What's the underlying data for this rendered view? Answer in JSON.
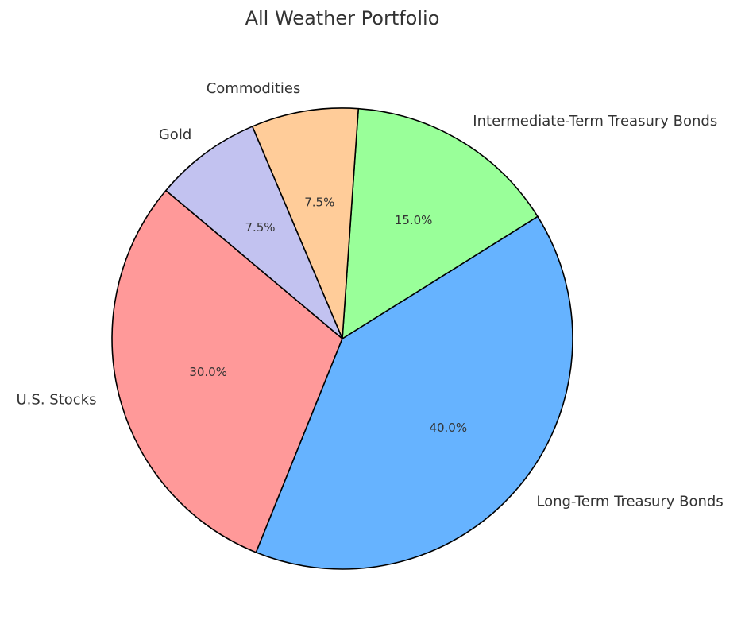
{
  "chart_data": {
    "type": "pie",
    "title": "All Weather Portfolio",
    "start_angle_deg": 140,
    "direction": "counterclockwise",
    "slices": [
      {
        "label": "U.S. Stocks",
        "value": 30.0,
        "pct_label": "30.0%",
        "color": "#ff9999"
      },
      {
        "label": "Long-Term Treasury Bonds",
        "value": 40.0,
        "pct_label": "40.0%",
        "color": "#66b3ff"
      },
      {
        "label": "Intermediate-Term Treasury Bonds",
        "value": 15.0,
        "pct_label": "15.0%",
        "color": "#99ff99"
      },
      {
        "label": "Commodities",
        "value": 7.5,
        "pct_label": "7.5%",
        "color": "#ffcc99"
      },
      {
        "label": "Gold",
        "value": 7.5,
        "pct_label": "7.5%",
        "color": "#c2c2f0"
      }
    ],
    "edge_color": "#000000"
  }
}
